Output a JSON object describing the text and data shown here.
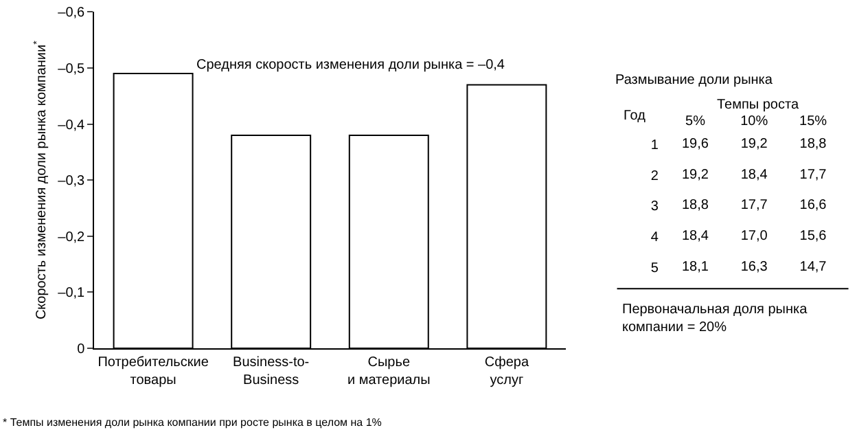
{
  "chart_data": [
    {
      "type": "bar",
      "ylabel": "Скорость изменения доли рынка компании$^{*}$",
      "categories": [
        "Потребительские\nтовары",
        "Business-to-\nBusiness",
        "Сырье\nи материалы",
        "Сфера\nуслуг"
      ],
      "values": [
        -0.49,
        -0.38,
        -0.38,
        -0.47
      ],
      "color": "#ffffff",
      "ylim": [
        0,
        -0.6
      ],
      "yticks": [
        {
          "value": 0,
          "label": "0"
        },
        {
          "value": -0.1,
          "label": "–0,1"
        },
        {
          "value": -0.2,
          "label": "–0,2"
        },
        {
          "value": -0.3,
          "label": "–0,3"
        },
        {
          "value": -0.4,
          "label": "–0,4"
        },
        {
          "value": -0.5,
          "label": "–0,5"
        },
        {
          "value": -0.6,
          "label": "–0,6"
        }
      ],
      "legend": false,
      "annotations": [
        "Средняя скорость изменения доли рынка = –0,4",
        "* Темпы изменения доли рынка компании при росте рынка в целом на 1%"
      ]
    },
    {
      "type": "heatmap",
      "title": "Размывание доли рынка",
      "subtitle": "Темпы роста",
      "ylabel": "Год",
      "categories": [
        "5%",
        "10%",
        "15%"
      ],
      "y_categories": [
        "1",
        "2",
        "3",
        "4",
        "5"
      ],
      "cells": [
        [
          19.6,
          19.2,
          18.8
        ],
        [
          19.2,
          18.4,
          17.7
        ],
        [
          18.8,
          17.7,
          16.6
        ],
        [
          18.4,
          17.0,
          15.6
        ],
        [
          18.1,
          16.3,
          14.7
        ]
      ],
      "cell_labels": [
        [
          "19,6",
          "19,2",
          "18,8"
        ],
        [
          "19,2",
          "18,4",
          "17,7"
        ],
        [
          "18,8",
          "17,7",
          "16,6"
        ],
        [
          "18,4",
          "17,0",
          "15,6"
        ],
        [
          "18,1",
          "16,3",
          "14,7"
        ]
      ],
      "annotations": [
        "Первоначальная доля рынка\nкомпании = 20%"
      ]
    }
  ]
}
